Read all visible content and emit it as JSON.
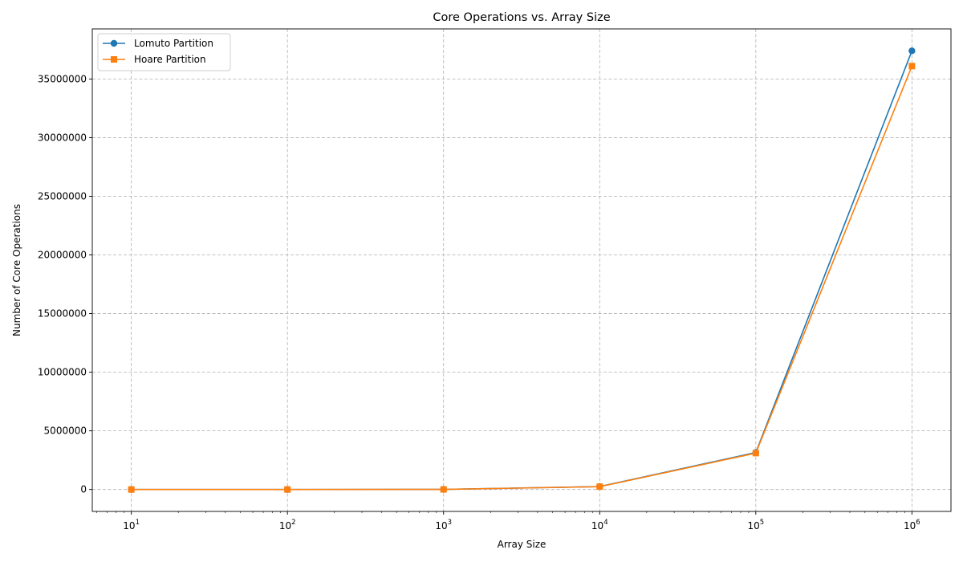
{
  "chart_data": {
    "type": "line",
    "title": "Core Operations vs. Array Size",
    "xlabel": "Array Size",
    "ylabel": "Number of Core Operations",
    "xscale": "log",
    "x": [
      10,
      100,
      1000,
      10000,
      100000,
      1000000
    ],
    "x_tick_labels": [
      {
        "base": "10",
        "exp": "1"
      },
      {
        "base": "10",
        "exp": "2"
      },
      {
        "base": "10",
        "exp": "3"
      },
      {
        "base": "10",
        "exp": "4"
      },
      {
        "base": "10",
        "exp": "5"
      },
      {
        "base": "10",
        "exp": "6"
      }
    ],
    "y_ticks": [
      0,
      5000000,
      10000000,
      15000000,
      20000000,
      25000000,
      30000000,
      35000000
    ],
    "y_tick_labels": [
      "0",
      "5000000",
      "10000000",
      "15000000",
      "20000000",
      "25000000",
      "30000000",
      "35000000"
    ],
    "ylim": [
      -1870000,
      39270000
    ],
    "xlim_log10": [
      0.75,
      6.25
    ],
    "grid": true,
    "legend_position": "top-left",
    "series": [
      {
        "name": "Lomuto Partition",
        "color": "#1f77b4",
        "marker": "circle",
        "values": [
          25,
          600,
          9000,
          250000,
          3150000,
          37400000
        ]
      },
      {
        "name": "Hoare Partition",
        "color": "#ff7f0e",
        "marker": "square",
        "values": [
          20,
          500,
          8000,
          240000,
          3100000,
          36100000
        ]
      }
    ]
  }
}
